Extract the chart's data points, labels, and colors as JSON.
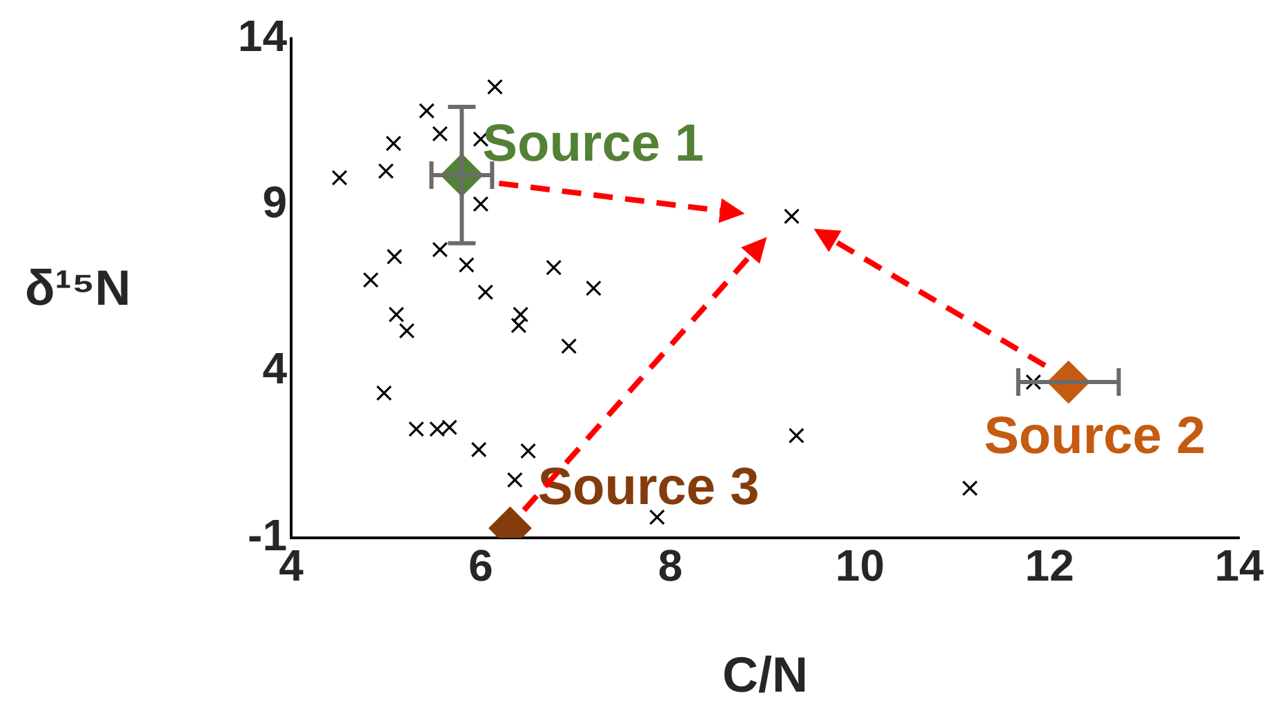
{
  "chart_data": {
    "type": "scatter",
    "xlabel": "C/N",
    "ylabel": "δ¹⁵N",
    "xlim": [
      4,
      14
    ],
    "xticks": [
      4,
      6,
      8,
      10,
      12,
      14
    ],
    "ylim": [
      -1,
      14
    ],
    "yticks": [
      -1,
      4,
      9,
      14
    ],
    "grid": false,
    "legend": false,
    "series": [
      {
        "color": "#000000",
        "marker": "cross",
        "x": [
          6.15,
          5.43,
          5.57,
          6.0,
          5.08,
          5.0,
          4.51,
          6.0,
          9.28,
          5.57,
          5.09,
          5.85,
          6.77,
          4.84,
          7.19,
          6.05,
          5.11,
          6.42,
          5.22,
          6.4,
          6.93,
          4.98,
          5.32,
          5.54,
          5.67,
          5.98,
          6.5,
          6.36,
          9.33,
          7.86,
          11.16,
          11.83
        ],
        "values": [
          12.55,
          11.83,
          11.14,
          10.98,
          10.85,
          10.02,
          9.82,
          9.03,
          8.66,
          7.66,
          7.45,
          7.2,
          7.12,
          6.75,
          6.5,
          6.38,
          5.71,
          5.71,
          5.22,
          5.38,
          4.76,
          3.35,
          2.27,
          2.27,
          2.32,
          1.65,
          1.61,
          0.74,
          2.07,
          -0.38,
          0.49,
          3.68
        ]
      },
      {
        "name": "Source 1",
        "color": "#538135",
        "marker": "diamond",
        "x": [
          5.8
        ],
        "values": [
          9.9
        ],
        "errors": [
          2.05
        ],
        "xerrors": [
          0.32
        ]
      },
      {
        "name": "Source 2",
        "color": "#c55a11",
        "marker": "diamond",
        "x": [
          12.2
        ],
        "values": [
          3.68
        ],
        "xerrors": [
          0.53
        ]
      },
      {
        "name": "Source 3",
        "color": "#843c0c",
        "marker": "diamond",
        "x": [
          6.31
        ],
        "values": [
          -0.71
        ]
      }
    ]
  }
}
